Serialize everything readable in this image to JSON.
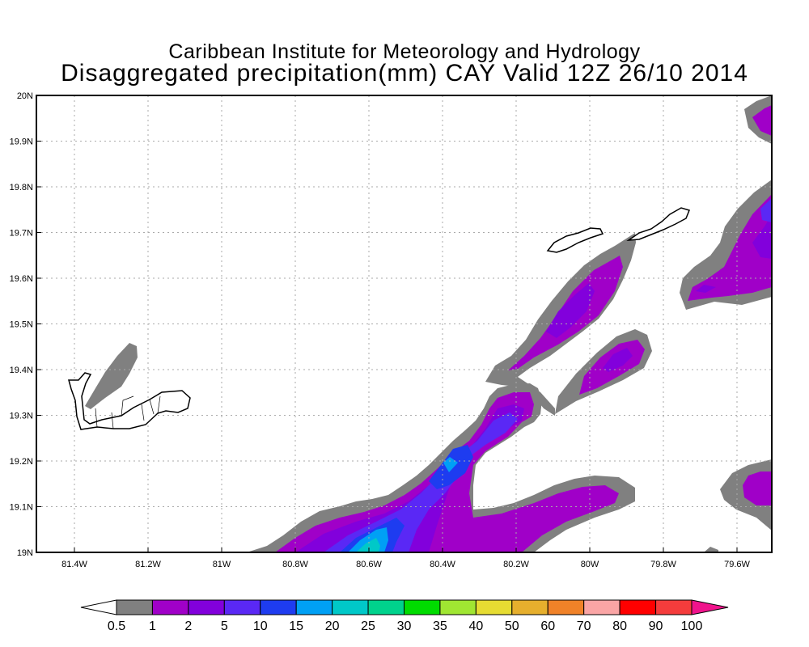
{
  "title": {
    "line1": "Caribbean Institute for Meteorology and Hydrology",
    "line2": "Disaggregated precipitation(mm) CAY Valid 12Z 26/10 2014"
  },
  "map": {
    "lat_labels": [
      "20N",
      "19.9N",
      "19.8N",
      "19.7N",
      "19.6N",
      "19.5N",
      "19.4N",
      "19.3N",
      "19.2N",
      "19.1N",
      "19N"
    ],
    "lon_labels": [
      "81.4W",
      "81.2W",
      "81W",
      "80.8W",
      "80.6W",
      "80.4W",
      "80.2W",
      "80W",
      "79.8W",
      "79.6W"
    ]
  },
  "legend": {
    "labels": [
      "0.5",
      "1",
      "2",
      "5",
      "10",
      "15",
      "20",
      "25",
      "30",
      "35",
      "40",
      "50",
      "60",
      "70",
      "80",
      "90",
      "100"
    ],
    "colors": [
      "#808080",
      "#a000c8",
      "#8200dc",
      "#5a28f5",
      "#1e3cf0",
      "#00a0f5",
      "#00c8c8",
      "#00d28c",
      "#00dc00",
      "#a0e632",
      "#e6dc32",
      "#e6af2d",
      "#f08228",
      "#faa5a5",
      "#ff0000",
      "#f53c3c"
    ],
    "below_color": "#ffffff",
    "above_color": "#f0148c"
  }
}
